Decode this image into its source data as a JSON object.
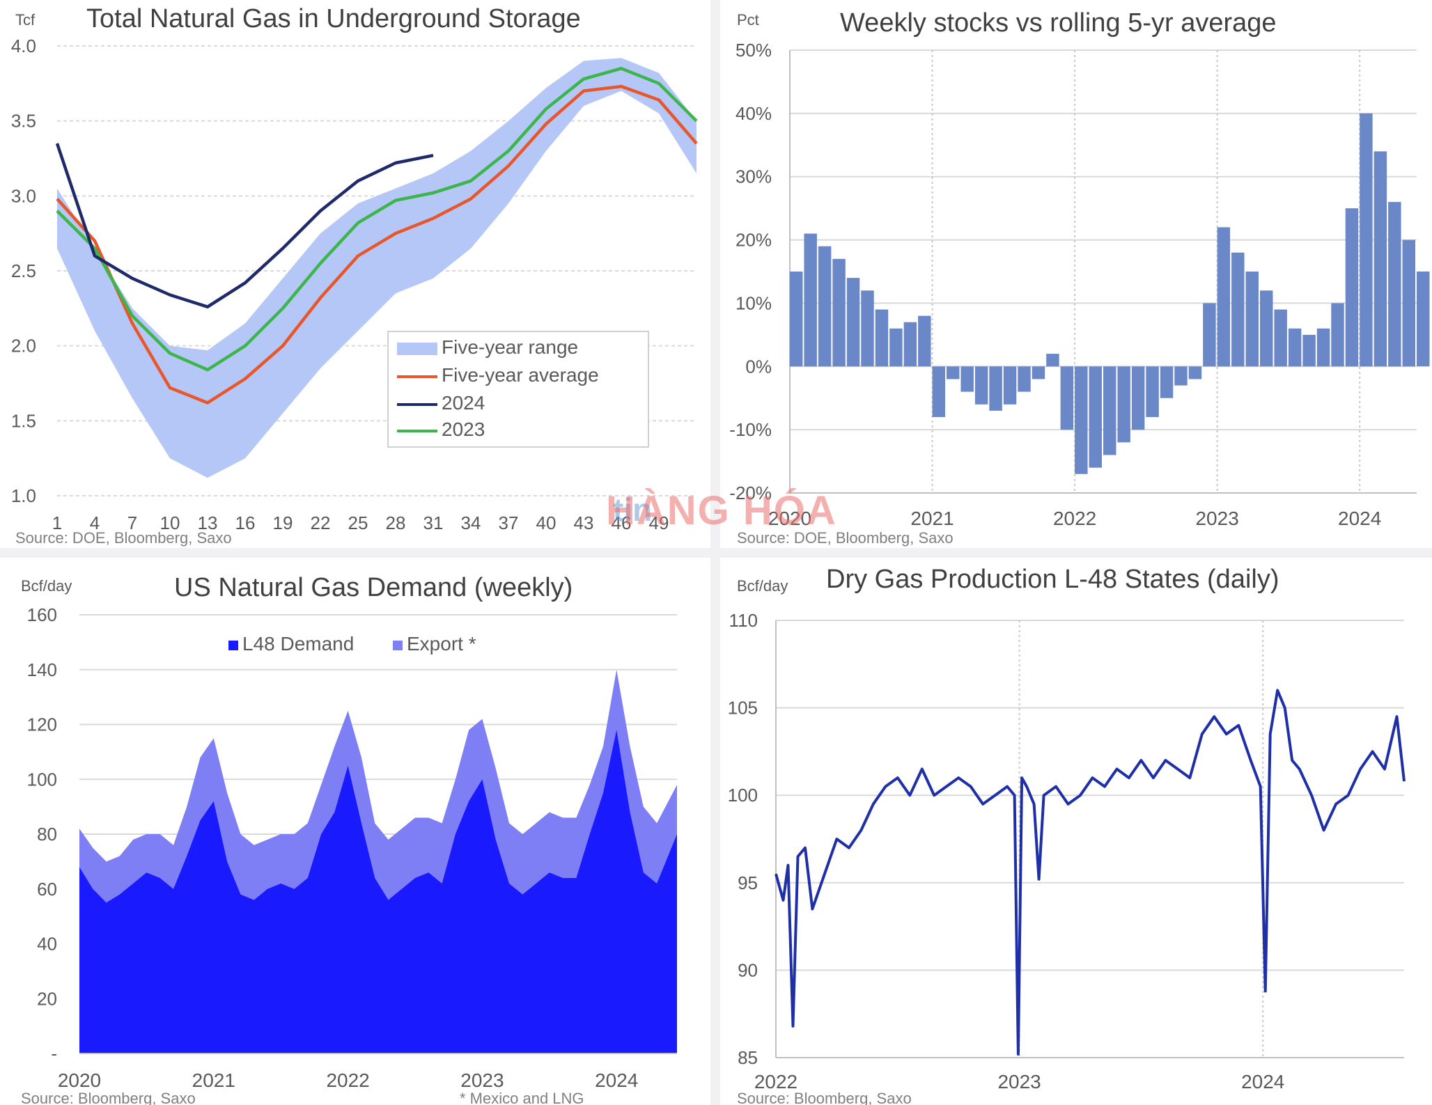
{
  "watermark": {
    "logo_text": "tin",
    "brand_text": "HÀNG HÓA"
  },
  "chart_data": [
    {
      "id": "storage",
      "type": "area",
      "title": "Total Natural Gas in Underground Storage",
      "unit_label": "Tcf",
      "source": "Source: DOE, Bloomberg, Saxo",
      "ylim": [
        1.0,
        4.0
      ],
      "yticks": [
        "1.0",
        "1.5",
        "2.0",
        "2.5",
        "3.0",
        "3.5",
        "4.0"
      ],
      "xlim": [
        1,
        52
      ],
      "xticks": [
        "1",
        "4",
        "7",
        "10",
        "13",
        "16",
        "19",
        "22",
        "25",
        "28",
        "31",
        "34",
        "37",
        "40",
        "43",
        "46",
        "49"
      ],
      "x": [
        1,
        4,
        7,
        10,
        13,
        16,
        19,
        22,
        25,
        28,
        31,
        34,
        37,
        40,
        43,
        46,
        49,
        52
      ],
      "grid": true,
      "legend": "center-right",
      "series": [
        {
          "name": "Five-year range",
          "kind": "band",
          "color": "#b4c7f7",
          "low": [
            2.65,
            2.1,
            1.65,
            1.25,
            1.12,
            1.25,
            1.55,
            1.85,
            2.1,
            2.35,
            2.45,
            2.65,
            2.95,
            3.3,
            3.6,
            3.7,
            3.55,
            3.15
          ],
          "high": [
            3.05,
            2.65,
            2.25,
            2.0,
            1.97,
            2.15,
            2.45,
            2.75,
            2.95,
            3.05,
            3.15,
            3.3,
            3.5,
            3.72,
            3.9,
            3.92,
            3.82,
            3.5
          ]
        },
        {
          "name": "Five-year average",
          "kind": "line",
          "color": "#e8562a",
          "values": [
            2.98,
            2.7,
            2.15,
            1.72,
            1.62,
            1.78,
            2.0,
            2.32,
            2.6,
            2.75,
            2.85,
            2.98,
            3.2,
            3.48,
            3.7,
            3.73,
            3.64,
            3.35
          ]
        },
        {
          "name": "2024",
          "kind": "line",
          "color": "#1f2a6b",
          "values": [
            3.35,
            2.6,
            2.45,
            2.34,
            2.26,
            2.42,
            2.65,
            2.9,
            3.1,
            3.22,
            3.27,
            null,
            null,
            null,
            null,
            null,
            null,
            null
          ]
        },
        {
          "name": "2023",
          "kind": "line",
          "color": "#3cb54a",
          "values": [
            2.9,
            2.65,
            2.2,
            1.95,
            1.84,
            2.0,
            2.25,
            2.55,
            2.82,
            2.97,
            3.02,
            3.1,
            3.3,
            3.58,
            3.78,
            3.85,
            3.75,
            3.5
          ]
        }
      ]
    },
    {
      "id": "weekly_vs_avg",
      "type": "bar",
      "title": "Weekly stocks vs rolling 5-yr average",
      "unit_label": "Pct",
      "source": "Source: DOE, Bloomberg, Saxo",
      "ylim": [
        -20,
        50
      ],
      "yticks": [
        "-20%",
        "-10%",
        "0%",
        "10%",
        "20%",
        "30%",
        "40%",
        "50%"
      ],
      "xlim": [
        2020.0,
        2024.4
      ],
      "xticks": [
        "2020",
        "2021",
        "2022",
        "2023",
        "2024"
      ],
      "color": "#6a87c8",
      "grid": true,
      "x": [
        2020.0,
        2020.1,
        2020.2,
        2020.3,
        2020.4,
        2020.5,
        2020.6,
        2020.7,
        2020.8,
        2020.9,
        2021.0,
        2021.1,
        2021.2,
        2021.3,
        2021.4,
        2021.5,
        2021.6,
        2021.7,
        2021.8,
        2021.9,
        2022.0,
        2022.1,
        2022.2,
        2022.3,
        2022.4,
        2022.5,
        2022.6,
        2022.7,
        2022.8,
        2022.9,
        2023.0,
        2023.1,
        2023.2,
        2023.3,
        2023.4,
        2023.5,
        2023.6,
        2023.7,
        2023.8,
        2023.9,
        2024.0,
        2024.1,
        2024.2,
        2024.3,
        2024.4
      ],
      "values": [
        15,
        21,
        19,
        17,
        14,
        12,
        9,
        6,
        7,
        8,
        -8,
        -2,
        -4,
        -6,
        -7,
        -6,
        -4,
        -2,
        2,
        -10,
        -17,
        -16,
        -14,
        -12,
        -10,
        -8,
        -5,
        -3,
        -2,
        10,
        22,
        18,
        15,
        12,
        9,
        6,
        5,
        6,
        10,
        25,
        40,
        34,
        26,
        20,
        15
      ]
    },
    {
      "id": "demand",
      "type": "area",
      "title": "US Natural Gas Demand (weekly)",
      "unit_label": "Bcf/day",
      "source": "Source: Bloomberg, Saxo",
      "footnote": "* Mexico and LNG",
      "ylim": [
        0,
        160
      ],
      "yticks": [
        "-",
        "20",
        "40",
        "60",
        "80",
        "100",
        "120",
        "140",
        "160"
      ],
      "xlim": [
        2020.0,
        2024.45
      ],
      "xticks": [
        "2020",
        "2021",
        "2022",
        "2023",
        "2024"
      ],
      "legend": "top-center",
      "grid": true,
      "x": [
        2020.0,
        2020.1,
        2020.2,
        2020.3,
        2020.4,
        2020.5,
        2020.6,
        2020.7,
        2020.8,
        2020.9,
        2021.0,
        2021.1,
        2021.2,
        2021.3,
        2021.4,
        2021.5,
        2021.6,
        2021.7,
        2021.8,
        2021.9,
        2022.0,
        2022.1,
        2022.2,
        2022.3,
        2022.4,
        2022.5,
        2022.6,
        2022.7,
        2022.8,
        2022.9,
        2023.0,
        2023.1,
        2023.2,
        2023.3,
        2023.4,
        2023.5,
        2023.6,
        2023.7,
        2023.8,
        2023.9,
        2024.0,
        2024.1,
        2024.2,
        2024.3,
        2024.45
      ],
      "series": [
        {
          "name": "L48 Demand",
          "color": "#1a1aff",
          "values": [
            68,
            60,
            55,
            58,
            62,
            66,
            64,
            60,
            72,
            85,
            92,
            70,
            58,
            56,
            60,
            62,
            60,
            64,
            80,
            88,
            105,
            84,
            64,
            56,
            60,
            64,
            66,
            62,
            80,
            92,
            100,
            78,
            62,
            58,
            62,
            66,
            64,
            64,
            80,
            95,
            118,
            88,
            66,
            62,
            80
          ]
        },
        {
          "name": "Export *",
          "color": "#7f7ff5",
          "values": [
            82,
            75,
            70,
            72,
            78,
            80,
            80,
            76,
            90,
            108,
            115,
            95,
            80,
            76,
            78,
            80,
            80,
            84,
            98,
            112,
            125,
            108,
            84,
            78,
            82,
            86,
            86,
            84,
            100,
            118,
            122,
            104,
            84,
            80,
            84,
            88,
            86,
            86,
            98,
            112,
            140,
            112,
            90,
            84,
            98
          ]
        }
      ]
    },
    {
      "id": "production",
      "type": "line",
      "title": "Dry Gas Production L-48 States (daily)",
      "unit_label": "Bcf/day",
      "source": "Source: Bloomberg, Saxo",
      "ylim": [
        85,
        110
      ],
      "yticks": [
        "85",
        "90",
        "95",
        "100",
        "105",
        "110"
      ],
      "xlim": [
        2022.0,
        2024.58
      ],
      "xticks": [
        "2022",
        "2023",
        "2024"
      ],
      "grid": true,
      "color": "#1f2fa8",
      "x": [
        2022.0,
        2022.03,
        2022.05,
        2022.07,
        2022.09,
        2022.12,
        2022.15,
        2022.2,
        2022.25,
        2022.3,
        2022.35,
        2022.4,
        2022.45,
        2022.5,
        2022.55,
        2022.6,
        2022.65,
        2022.7,
        2022.75,
        2022.8,
        2022.85,
        2022.9,
        2022.95,
        2022.98,
        2022.995,
        2023.01,
        2023.03,
        2023.06,
        2023.08,
        2023.1,
        2023.15,
        2023.2,
        2023.25,
        2023.3,
        2023.35,
        2023.4,
        2023.45,
        2023.5,
        2023.55,
        2023.6,
        2023.65,
        2023.7,
        2023.75,
        2023.8,
        2023.85,
        2023.9,
        2023.95,
        2023.99,
        2024.01,
        2024.03,
        2024.06,
        2024.09,
        2024.12,
        2024.15,
        2024.2,
        2024.25,
        2024.3,
        2024.35,
        2024.4,
        2024.45,
        2024.5,
        2024.55,
        2024.58
      ],
      "values": [
        95.5,
        94.0,
        96.0,
        86.8,
        96.5,
        97.0,
        93.5,
        95.5,
        97.5,
        97.0,
        98.0,
        99.5,
        100.5,
        101.0,
        100.0,
        101.5,
        100.0,
        100.5,
        101.0,
        100.5,
        99.5,
        100.0,
        100.5,
        100.0,
        85.2,
        101.0,
        100.5,
        99.5,
        95.2,
        100.0,
        100.5,
        99.5,
        100.0,
        101.0,
        100.5,
        101.5,
        101.0,
        102.0,
        101.0,
        102.0,
        101.5,
        101.0,
        103.5,
        104.5,
        103.5,
        104.0,
        102.0,
        100.5,
        88.8,
        103.5,
        106.0,
        105.0,
        102.0,
        101.5,
        100.0,
        98.0,
        99.5,
        100.0,
        101.5,
        102.5,
        101.5,
        104.5,
        100.8
      ]
    }
  ]
}
